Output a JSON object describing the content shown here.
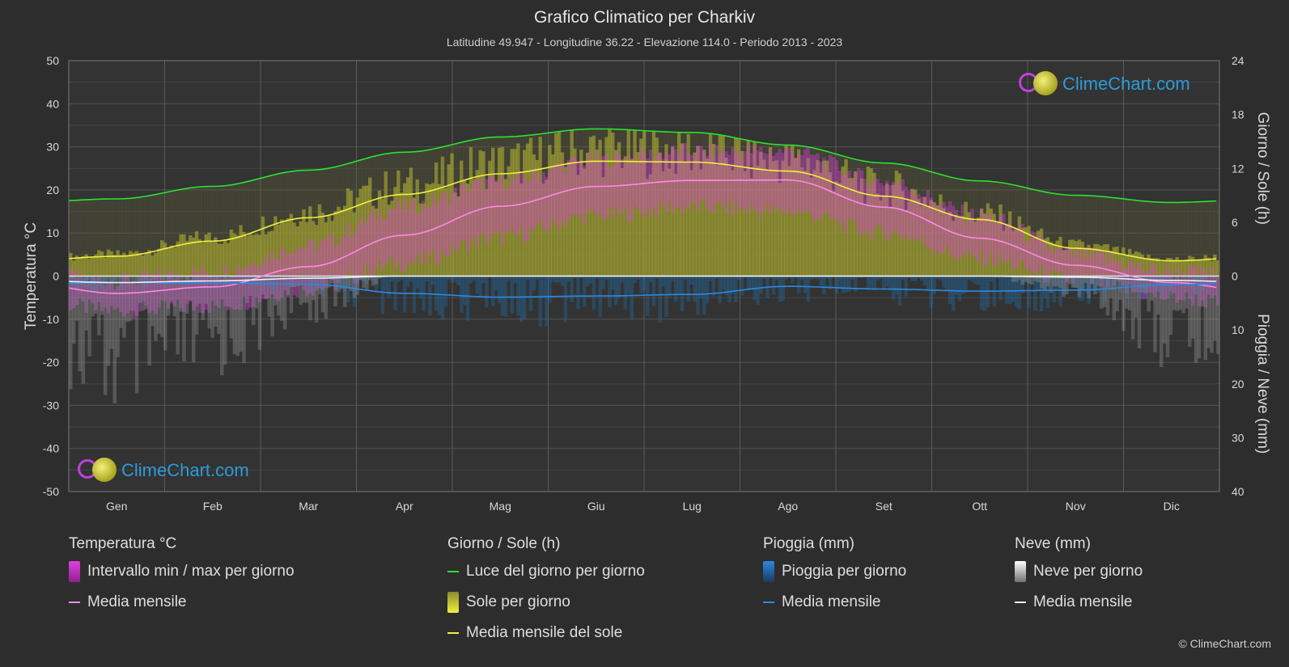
{
  "title": "Grafico Climatico per Charkiv",
  "subtitle": "Latitudine 49.947 - Longitudine 36.22 - Elevazione 114.0 - Periodo 2013 - 2023",
  "logo_text": "ClimeChart.com",
  "copyright": "© ClimeChart.com",
  "colors": {
    "temp_range": "#e040e0",
    "temp_mean": "#ff88e6",
    "daylight": "#2ee02e",
    "sun_mean": "#f0f040",
    "sun_fill": "#b8b830",
    "rain_mean": "#2a8ae0",
    "rain_fill": "#1f6fb0",
    "snow_mean": "#f0f0f0",
    "snow_fill": "#9a9a9a"
  },
  "legend": {
    "temperature": {
      "heading": "Temperatura °C",
      "range": "Intervallo min / max per giorno",
      "mean": "Media mensile"
    },
    "sun": {
      "heading": "Giorno / Sole (h)",
      "daylight": "Luce del giorno per giorno",
      "sun_day": "Sole per giorno",
      "sun_mean": "Media mensile del sole"
    },
    "rain": {
      "heading": "Pioggia (mm)",
      "rain_day": "Pioggia per giorno",
      "mean": "Media mensile"
    },
    "snow": {
      "heading": "Neve (mm)",
      "snow_day": "Neve per giorno",
      "mean": "Media mensile"
    }
  },
  "chart_data": {
    "type": "line",
    "x": [
      "Gen",
      "Feb",
      "Mar",
      "Apr",
      "Mag",
      "Giu",
      "Lug",
      "Ago",
      "Set",
      "Ott",
      "Nov",
      "Dic"
    ],
    "axes": {
      "left": {
        "label": "Temperatura °C",
        "range": [
          -50,
          50
        ],
        "ticks": [
          50,
          40,
          30,
          20,
          10,
          0,
          -10,
          -20,
          -30,
          -40,
          -50
        ]
      },
      "right_top": {
        "label": "Giorno / Sole (h)",
        "range": [
          0,
          24
        ],
        "ticks": [
          24,
          18,
          12,
          6,
          0
        ]
      },
      "right_bottom": {
        "label": "Pioggia / Neve (mm)",
        "range": [
          0,
          40
        ],
        "ticks": [
          10,
          20,
          30,
          40
        ]
      }
    },
    "grid": true,
    "series": [
      {
        "name": "Media mensile",
        "group": "temperature",
        "axis": "left",
        "values": [
          -4.0,
          -2.5,
          2.2,
          9.5,
          16.2,
          20.8,
          22.2,
          22.3,
          16.0,
          8.8,
          2.5,
          -1.5
        ]
      },
      {
        "name": "Intervallo min / max per giorno",
        "group": "temperature",
        "axis": "left",
        "min": [
          -8,
          -7,
          -3,
          3,
          9,
          14,
          16,
          15,
          10,
          4,
          -1,
          -5
        ],
        "max": [
          -1,
          1,
          7,
          16,
          22,
          27,
          29,
          29,
          22,
          14,
          5,
          1
        ]
      },
      {
        "name": "Luce del giorno per giorno",
        "group": "sun",
        "axis": "right_top",
        "values": [
          8.6,
          10.0,
          11.8,
          13.8,
          15.5,
          16.4,
          16.0,
          14.6,
          12.6,
          10.6,
          9.0,
          8.2
        ]
      },
      {
        "name": "Media mensile del sole",
        "group": "sun",
        "axis": "right_top",
        "values": [
          2.2,
          3.9,
          6.5,
          9.1,
          11.4,
          12.8,
          12.7,
          11.7,
          8.9,
          6.3,
          3.1,
          1.7
        ]
      },
      {
        "name": "Media mensile",
        "group": "rain",
        "axis": "right_bottom",
        "values": [
          1.2,
          1.3,
          1.5,
          3.2,
          3.9,
          3.7,
          3.4,
          1.9,
          2.4,
          2.8,
          2.6,
          1.6
        ]
      },
      {
        "name": "Media mensile",
        "group": "snow",
        "axis": "right_bottom",
        "values": [
          1.2,
          0.9,
          0.4,
          0.0,
          0.0,
          0.0,
          0.0,
          0.0,
          0.0,
          0.0,
          0.2,
          0.8
        ]
      }
    ]
  }
}
